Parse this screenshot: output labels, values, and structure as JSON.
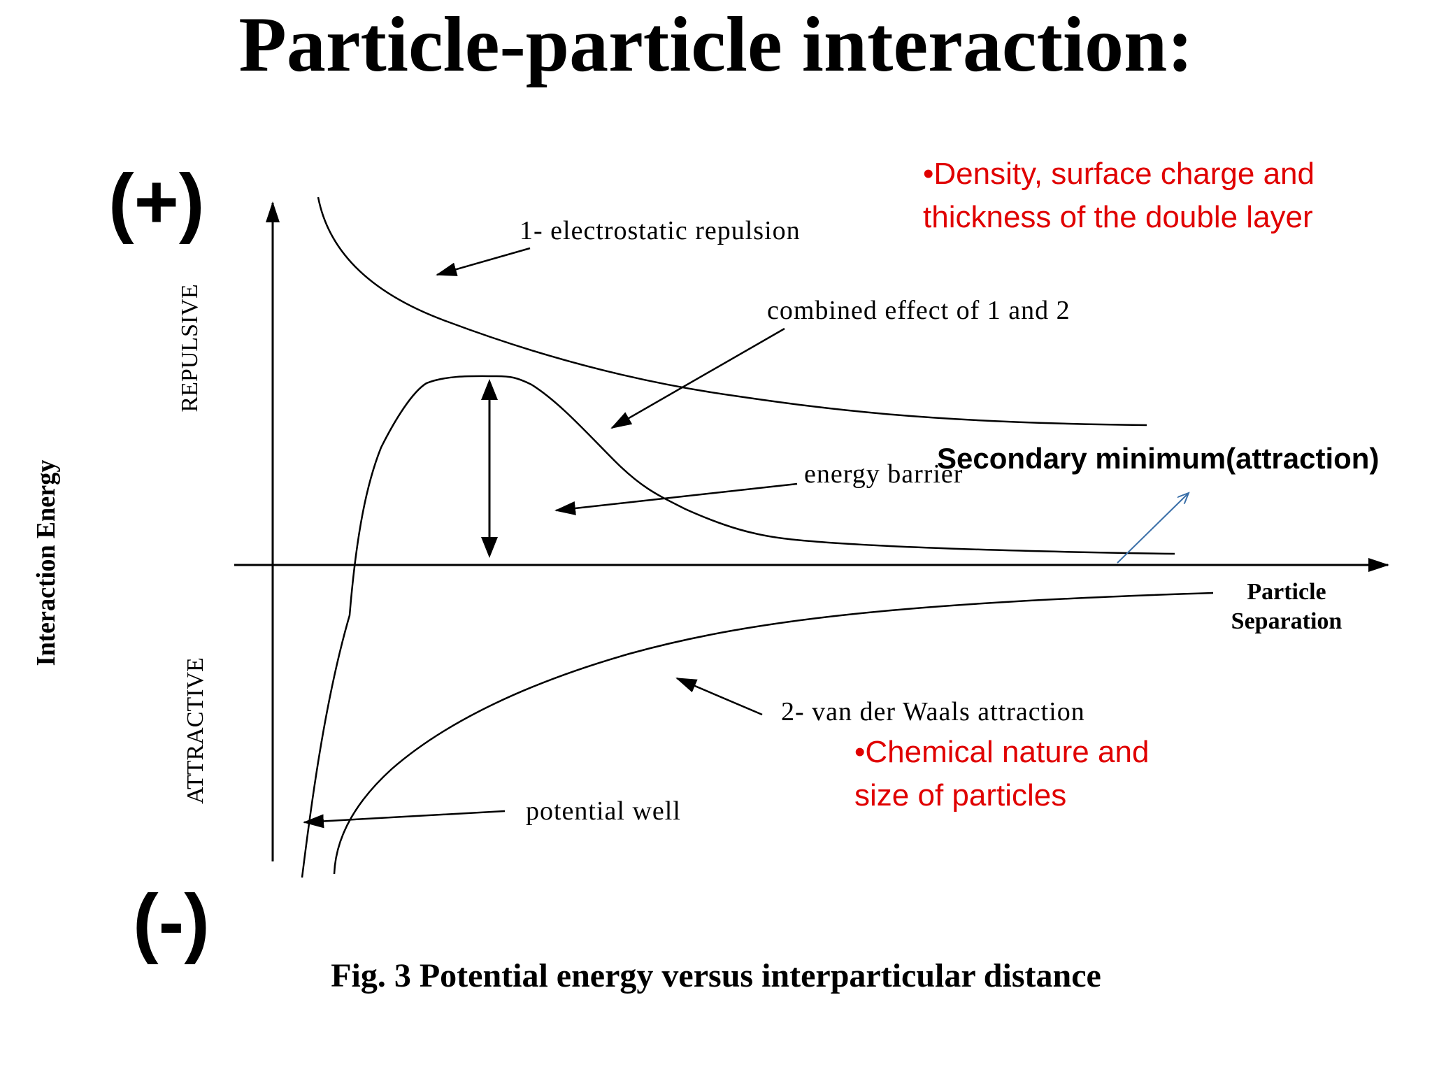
{
  "slide": {
    "title": "Particle-particle interaction:",
    "caption": "Fig. 3 Potential energy versus interparticular distance",
    "plus_sign": "(+)",
    "minus_sign": "(-)"
  },
  "diagram": {
    "y_axis_label": "Interaction Energy",
    "repulsive_label": "REPULSIVE",
    "attractive_label": "ATTRACTIVE",
    "x_axis_label_line1": "Particle",
    "x_axis_label_line2": "Separation",
    "labels": {
      "electrostatic": "1- electrostatic repulsion",
      "combined": "combined effect of 1 and 2",
      "barrier": "energy barrier",
      "vdw": "2- van der Waals attraction",
      "well": "potential well"
    }
  },
  "notes": {
    "repulsion_line1": "•Density, surface charge  and",
    "repulsion_line2": "thickness of the double layer",
    "secondary_minimum": "Secondary minimum(attraction)",
    "vdw_line1": "•Chemical nature and",
    "vdw_line2": "size of particles"
  },
  "colors": {
    "note_red": "#e00000",
    "arrow_blue": "#3a6fa8",
    "ink": "#000000"
  }
}
